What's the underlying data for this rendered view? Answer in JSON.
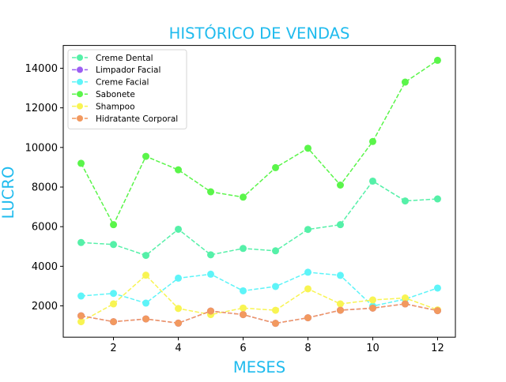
{
  "chart_data": {
    "type": "line",
    "title": "HISTÓRICO DE VENDAS",
    "xlabel": "MESES",
    "ylabel": "LUCRO",
    "xlim": [
      0.45,
      12.55
    ],
    "ylim": [
      420,
      15150
    ],
    "x_ticks": [
      2,
      4,
      6,
      8,
      10,
      12
    ],
    "y_ticks": [
      2000,
      4000,
      6000,
      8000,
      10000,
      12000,
      14000
    ],
    "grid": false,
    "legend_position": "top-left",
    "colors": {
      "title": "#1fbbee",
      "axis_label": "#1fbbee"
    },
    "x": [
      1,
      2,
      3,
      4,
      5,
      6,
      7,
      8,
      9,
      10,
      11,
      12
    ],
    "series": [
      {
        "name": "Creme Dental",
        "color": "#55f0a8",
        "values": [
          5200,
          5100,
          4550,
          5870,
          4580,
          4900,
          4780,
          5860,
          6100,
          8300,
          7300,
          7400
        ]
      },
      {
        "name": "Limpador Facial",
        "color": "#9c5ff2",
        "values": [
          1500,
          1200,
          1340,
          1130,
          1740,
          1560,
          1120,
          1400,
          1780,
          1890,
          2100,
          1760
        ]
      },
      {
        "name": "Creme Facial",
        "color": "#5ef4f8",
        "values": [
          2500,
          2630,
          2140,
          3400,
          3600,
          2760,
          2980,
          3700,
          3540,
          1990,
          2340,
          2900
        ]
      },
      {
        "name": "Sabonete",
        "color": "#5af54a",
        "values": [
          9200,
          6100,
          9550,
          8870,
          7760,
          7490,
          8980,
          9960,
          8100,
          10300,
          13300,
          14400
        ]
      },
      {
        "name": "Shampoo",
        "color": "#f8f452",
        "values": [
          1200,
          2100,
          3550,
          1870,
          1560,
          1890,
          1780,
          2860,
          2100,
          2300,
          2400,
          1800
        ]
      },
      {
        "name": "Hidratante Corporal",
        "color": "#f2995f",
        "values": [
          1500,
          1200,
          1340,
          1130,
          1740,
          1560,
          1120,
          1400,
          1780,
          1890,
          2100,
          1760
        ]
      }
    ]
  }
}
